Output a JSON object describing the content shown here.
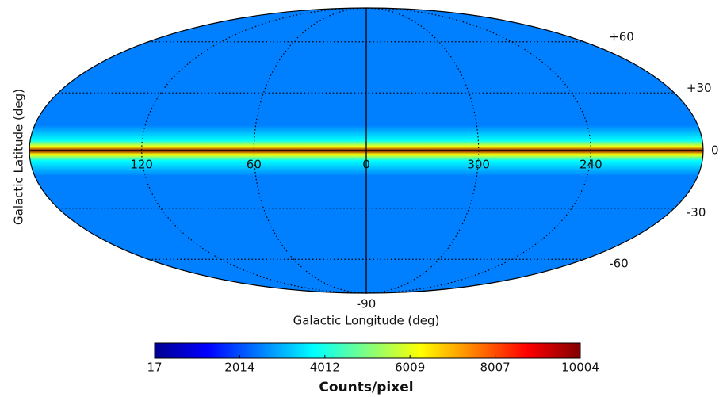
{
  "chart_data": {
    "type": "skymap",
    "xlabel": "Galactic Longitude (deg)",
    "ylabel": "Galactic Latitude (deg)",
    "longitude_ticks": [
      120,
      60,
      0,
      300,
      240
    ],
    "latitude_ticks": [
      {
        "value": 60,
        "label": "+60"
      },
      {
        "value": 30,
        "label": "+30"
      },
      0,
      -30,
      -60,
      -90
    ],
    "colorbar": {
      "label": "Counts/pixel",
      "lim": [
        17,
        10004
      ],
      "ticks": [
        17,
        2014,
        4012,
        6009,
        8007,
        10004
      ],
      "colormap": [
        "#00008f",
        "#0000ff",
        "#0080ff",
        "#00ffff",
        "#80ff80",
        "#ffff00",
        "#ff8000",
        "#ff0000",
        "#800000"
      ]
    }
  }
}
